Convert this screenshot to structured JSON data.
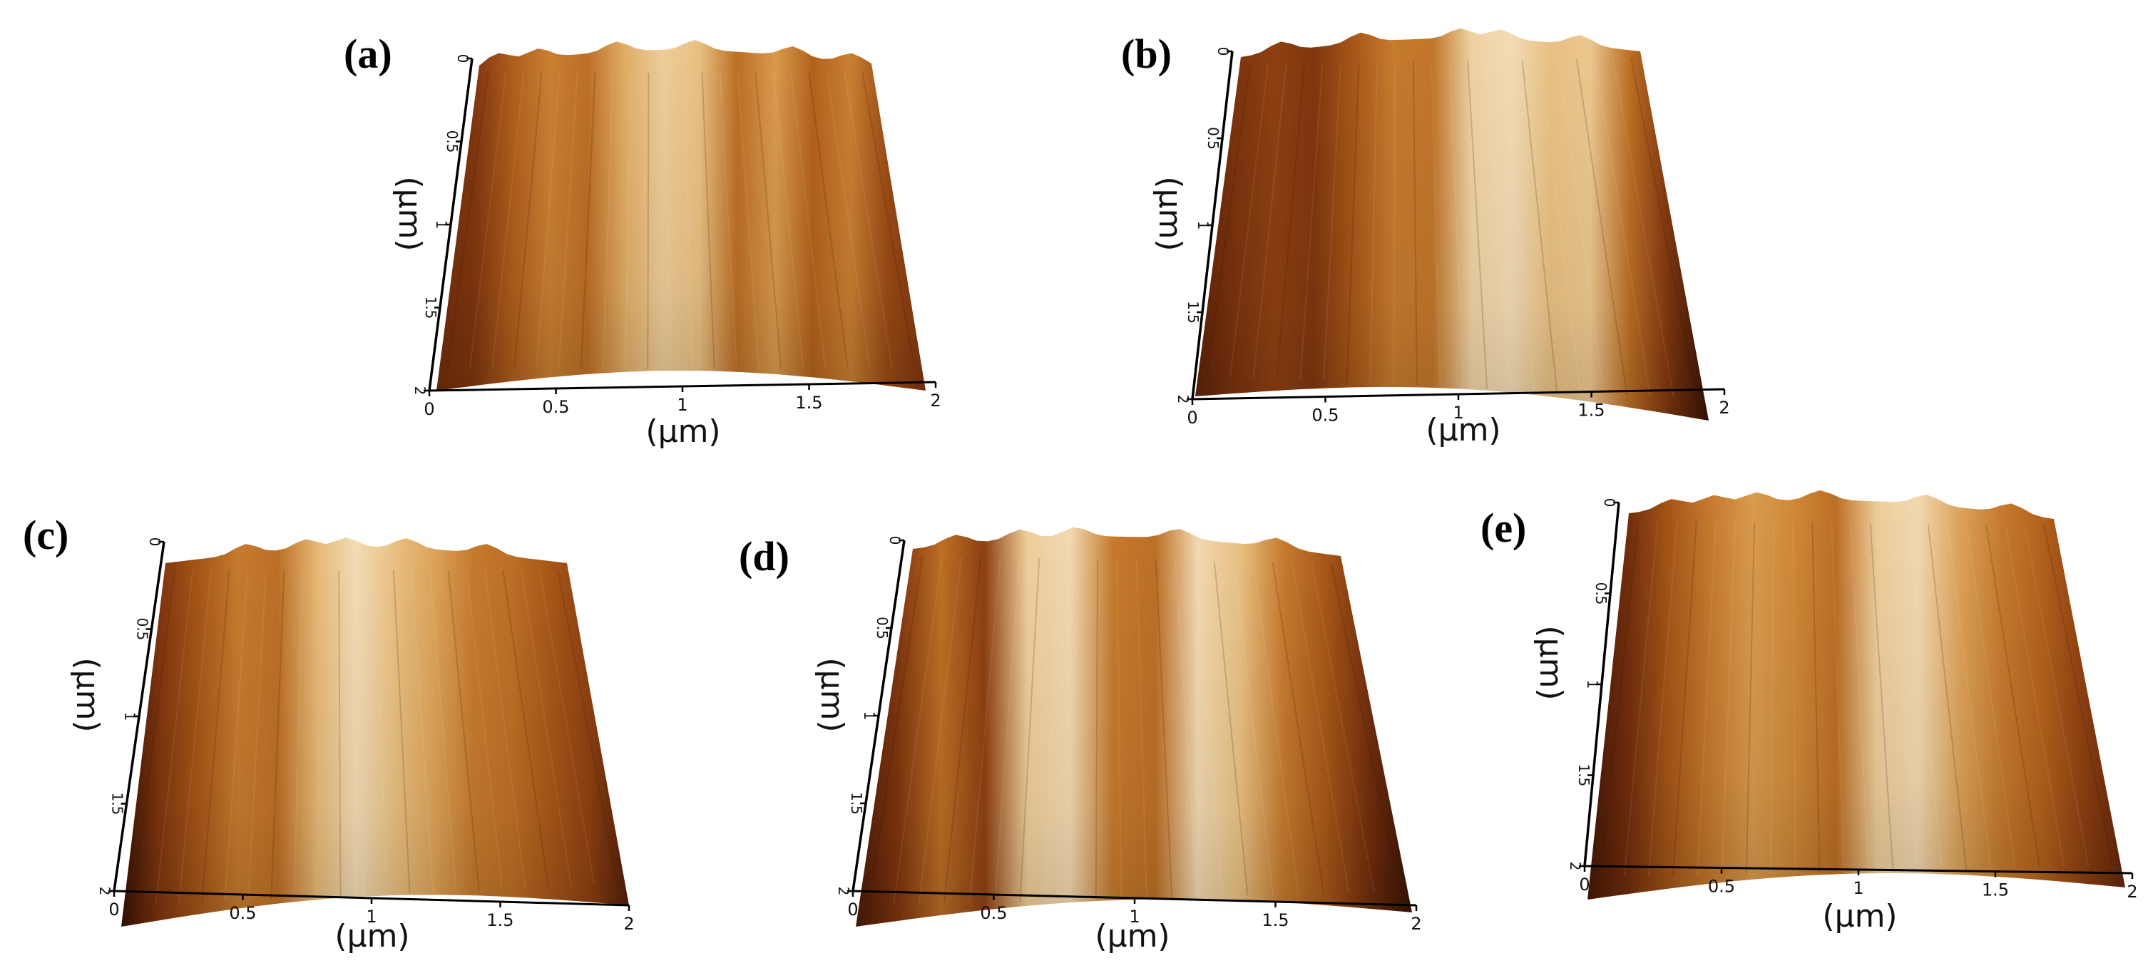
{
  "figure": {
    "unit_label": "(μm)",
    "x_ticks": [
      "0",
      "0.5",
      "1",
      "1.5",
      "2"
    ],
    "y_ticks": [
      "0",
      "0.5",
      "1",
      "1.5",
      "2"
    ],
    "colormap": [
      "#2a0c04",
      "#5a2008",
      "#8a3c10",
      "#b4621c",
      "#d28c3a",
      "#e8bc7a",
      "#f6e6c8"
    ],
    "panels": [
      {
        "id": "a",
        "label": "(a)",
        "stripe_profile": [
          0.25,
          0.3,
          0.48,
          0.62,
          0.55,
          0.78,
          0.9,
          0.85,
          0.55,
          0.72,
          0.5,
          0.62,
          0.4,
          0.3
        ]
      },
      {
        "id": "b",
        "label": "(b)",
        "stripe_profile": [
          0.18,
          0.28,
          0.35,
          0.3,
          0.45,
          0.6,
          0.58,
          0.92,
          0.96,
          0.85,
          0.88,
          0.55,
          0.3,
          0.05
        ]
      },
      {
        "id": "c",
        "label": "(c)",
        "stripe_profile": [
          0.05,
          0.3,
          0.45,
          0.6,
          0.55,
          0.82,
          0.96,
          0.85,
          0.75,
          0.6,
          0.55,
          0.45,
          0.35,
          0.15
        ]
      },
      {
        "id": "d",
        "label": "(d)",
        "stripe_profile": [
          0.12,
          0.3,
          0.55,
          0.35,
          0.9,
          0.95,
          0.6,
          0.55,
          0.95,
          0.85,
          0.6,
          0.45,
          0.25,
          0.05
        ]
      },
      {
        "id": "e",
        "label": "(e)",
        "stripe_profile": [
          0.1,
          0.25,
          0.45,
          0.6,
          0.72,
          0.65,
          0.55,
          0.9,
          0.95,
          0.75,
          0.6,
          0.5,
          0.35,
          0.2
        ]
      }
    ]
  }
}
